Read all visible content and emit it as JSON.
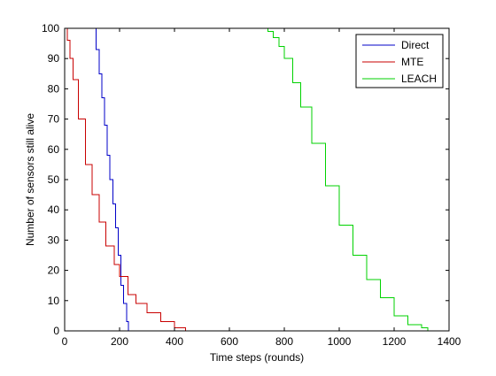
{
  "chart_data": {
    "type": "line",
    "title": "",
    "xlabel": "Time steps (rounds)",
    "ylabel": "Number of sensors still alive",
    "xlim": [
      0,
      1400
    ],
    "ylim": [
      0,
      100
    ],
    "xticks": [
      0,
      200,
      400,
      600,
      800,
      1000,
      1200,
      1400
    ],
    "yticks": [
      0,
      10,
      20,
      30,
      40,
      50,
      60,
      70,
      80,
      90,
      100
    ],
    "grid": false,
    "legend_position": "top-right",
    "series": [
      {
        "name": "Direct",
        "color": "#0000c8",
        "style": "step",
        "x": [
          0,
          108,
          115,
          125,
          135,
          145,
          155,
          165,
          175,
          185,
          195,
          205,
          215,
          225,
          232
        ],
        "y": [
          100,
          100,
          93,
          85,
          77,
          68,
          58,
          50,
          42,
          34,
          25,
          15,
          9,
          3,
          0
        ]
      },
      {
        "name": "MTE",
        "color": "#c80000",
        "style": "step",
        "x": [
          0,
          10,
          20,
          30,
          50,
          75,
          100,
          125,
          150,
          180,
          200,
          230,
          260,
          300,
          350,
          400,
          420,
          440
        ],
        "y": [
          100,
          96,
          90,
          83,
          70,
          55,
          45,
          36,
          28,
          22,
          18,
          12,
          9,
          6,
          3,
          1,
          1,
          0
        ]
      },
      {
        "name": "LEACH",
        "color": "#00d200",
        "style": "step",
        "x": [
          0,
          690,
          740,
          760,
          780,
          800,
          830,
          860,
          900,
          950,
          1000,
          1050,
          1100,
          1150,
          1200,
          1250,
          1300,
          1322,
          1330
        ],
        "y": [
          100,
          100,
          99,
          97,
          94,
          90,
          82,
          74,
          62,
          48,
          35,
          25,
          17,
          11,
          5,
          2,
          1,
          0,
          0
        ]
      }
    ]
  }
}
